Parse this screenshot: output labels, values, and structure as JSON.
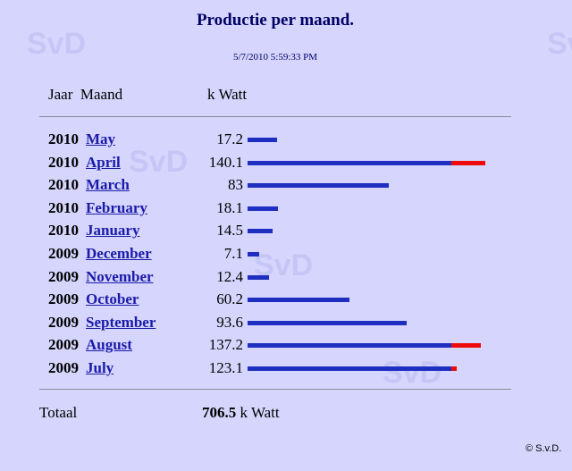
{
  "watermark": "SvD",
  "title": "Productie per maand.",
  "timestamp": "5/7/2010 5:59:33 PM",
  "header": {
    "year_month": "Jaar  Maand",
    "unit": "k Watt"
  },
  "chart_data": {
    "type": "bar",
    "orientation": "horizontal",
    "threshold": 120,
    "rows": [
      {
        "year": "2010",
        "month": "May",
        "value": 17.2,
        "label": "17.2"
      },
      {
        "year": "2010",
        "month": "April",
        "value": 140.1,
        "label": "140.1"
      },
      {
        "year": "2010",
        "month": "March",
        "value": 83,
        "label": "83"
      },
      {
        "year": "2010",
        "month": "February",
        "value": 18.1,
        "label": "18.1"
      },
      {
        "year": "2010",
        "month": "January",
        "value": 14.5,
        "label": "14.5"
      },
      {
        "year": "2009",
        "month": "December",
        "value": 7.1,
        "label": "7.1"
      },
      {
        "year": "2009",
        "month": "November",
        "value": 12.4,
        "label": "12.4"
      },
      {
        "year": "2009",
        "month": "October",
        "value": 60.2,
        "label": "60.2"
      },
      {
        "year": "2009",
        "month": "September",
        "value": 93.6,
        "label": "93.6"
      },
      {
        "year": "2009",
        "month": "August",
        "value": 137.2,
        "label": "137.2"
      },
      {
        "year": "2009",
        "month": "July",
        "value": 123.1,
        "label": "123.1"
      }
    ],
    "colors": {
      "bar": "#1e2ec0",
      "over": "#ee0a0a"
    }
  },
  "total": {
    "label": "Totaal",
    "value": "706.5",
    "unit": " k Watt"
  },
  "copyright": "© S.v.D."
}
